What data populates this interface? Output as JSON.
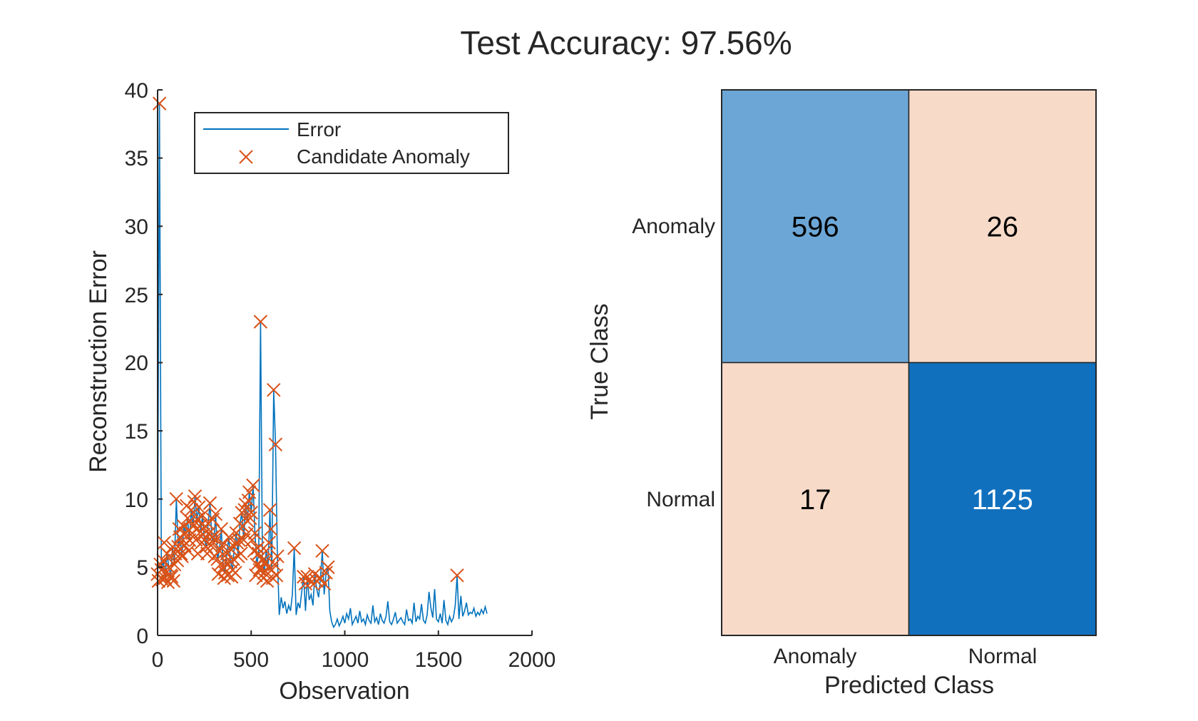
{
  "title": "Test Accuracy: 97.56%",
  "chart_data": [
    {
      "type": "line",
      "xlabel": "Observation",
      "ylabel": "Reconstruction Error",
      "xlim": [
        0,
        2000
      ],
      "ylim": [
        0,
        40
      ],
      "xticks": [
        "0",
        "500",
        "1000",
        "1500",
        "2000"
      ],
      "yticks": [
        "0",
        "5",
        "10",
        "15",
        "20",
        "25",
        "30",
        "35",
        "40"
      ],
      "grid": false,
      "legend": {
        "placement": "top-center",
        "entries": [
          "Error",
          "Candidate Anomaly"
        ]
      },
      "colors": {
        "error": "#0072BD",
        "anomaly": "#D95319"
      },
      "series": [
        {
          "name": "Error",
          "x_start": 0,
          "x_step": 10,
          "y": [
            4.5,
            39,
            4.8,
            5.5,
            4.2,
            6.0,
            5.0,
            4.4,
            6.5,
            5.2,
            10.0,
            6.5,
            7.2,
            5.8,
            8.0,
            7.5,
            8.6,
            7.0,
            9.2,
            8.0,
            10.2,
            8.5,
            9.4,
            7.6,
            8.8,
            7.0,
            6.5,
            8.2,
            9.7,
            7.2,
            6.8,
            8.9,
            5.6,
            6.2,
            7.8,
            5.0,
            4.6,
            6.0,
            7.2,
            5.4,
            4.8,
            6.5,
            7.5,
            5.8,
            8.2,
            9.0,
            7.0,
            9.6,
            8.4,
            10.5,
            9.0,
            11.0,
            7.5,
            5.2,
            6.0,
            23.0,
            5.5,
            4.6,
            6.2,
            5.0,
            9.2,
            4.8,
            18.0,
            14.0,
            5.8,
            1.5,
            2.8,
            2.0,
            2.5,
            1.6,
            2.2,
            1.8,
            3.0,
            6.4,
            1.5,
            2.4,
            2.0,
            3.2,
            4.3,
            1.8,
            4.3,
            2.6,
            3.0,
            2.2,
            4.5,
            3.4,
            2.8,
            4.2,
            6.2,
            3.0,
            4.6,
            5.0,
            1.8,
            1.0,
            0.6,
            0.8,
            1.2,
            0.7,
            1.0,
            1.4,
            0.9,
            1.6,
            1.2,
            2.0,
            0.8,
            1.1,
            1.4,
            0.9,
            1.8,
            1.0,
            1.2,
            0.8,
            1.5,
            1.1,
            0.9,
            2.2,
            1.0,
            1.3,
            0.8,
            1.6,
            1.1,
            0.9,
            1.4,
            2.5,
            1.0,
            0.8,
            1.2,
            1.7,
            0.9,
            1.1,
            1.3,
            1.0,
            0.8,
            1.9,
            1.1,
            1.2,
            0.9,
            2.4,
            1.0,
            1.4,
            1.2,
            2.3,
            1.1,
            0.9,
            1.5,
            3.2,
            2.0,
            1.3,
            3.4,
            1.2,
            1.0,
            1.6,
            0.9,
            2.6,
            1.1,
            0.8,
            1.4,
            1.0,
            1.3,
            2.2,
            4.4,
            1.2,
            2.9,
            1.4,
            1.8,
            2.4,
            1.5,
            1.7,
            1.6,
            2.0,
            1.4,
            1.7,
            1.5,
            1.9,
            1.6,
            2.1,
            1.6
          ]
        },
        {
          "name": "Candidate Anomaly",
          "points": [
            [
              0,
              4.5
            ],
            [
              10,
              39
            ],
            [
              20,
              4.8
            ],
            [
              30,
              5.5
            ],
            [
              40,
              4.2
            ],
            [
              50,
              6.0
            ],
            [
              60,
              5.0
            ],
            [
              70,
              4.4
            ],
            [
              80,
              6.5
            ],
            [
              90,
              5.2
            ],
            [
              100,
              10.0
            ],
            [
              110,
              6.5
            ],
            [
              120,
              7.2
            ],
            [
              130,
              5.8
            ],
            [
              140,
              8.0
            ],
            [
              150,
              7.5
            ],
            [
              160,
              8.6
            ],
            [
              170,
              7.0
            ],
            [
              180,
              9.2
            ],
            [
              190,
              8.0
            ],
            [
              200,
              10.2
            ],
            [
              210,
              8.5
            ],
            [
              220,
              9.4
            ],
            [
              230,
              7.6
            ],
            [
              240,
              8.8
            ],
            [
              250,
              7.0
            ],
            [
              260,
              6.5
            ],
            [
              270,
              8.2
            ],
            [
              280,
              9.7
            ],
            [
              290,
              7.2
            ],
            [
              300,
              6.8
            ],
            [
              310,
              8.9
            ],
            [
              320,
              5.6
            ],
            [
              330,
              6.2
            ],
            [
              340,
              7.8
            ],
            [
              350,
              5.0
            ],
            [
              360,
              4.6
            ],
            [
              370,
              6.0
            ],
            [
              380,
              7.2
            ],
            [
              390,
              5.4
            ],
            [
              400,
              4.8
            ],
            [
              410,
              6.5
            ],
            [
              420,
              7.5
            ],
            [
              430,
              5.8
            ],
            [
              440,
              8.2
            ],
            [
              450,
              9.0
            ],
            [
              460,
              7.0
            ],
            [
              470,
              9.6
            ],
            [
              480,
              8.4
            ],
            [
              490,
              10.5
            ],
            [
              500,
              9.0
            ],
            [
              510,
              11.0
            ],
            [
              520,
              7.5
            ],
            [
              530,
              5.2
            ],
            [
              540,
              6.0
            ],
            [
              550,
              23.0
            ],
            [
              560,
              5.5
            ],
            [
              570,
              4.6
            ],
            [
              580,
              6.2
            ],
            [
              590,
              5.0
            ],
            [
              600,
              9.2
            ],
            [
              610,
              4.8
            ],
            [
              620,
              18.0
            ],
            [
              630,
              14.0
            ],
            [
              640,
              5.8
            ],
            [
              5,
              4.0
            ],
            [
              15,
              5.2
            ],
            [
              25,
              4.1
            ],
            [
              35,
              6.8
            ],
            [
              45,
              4.6
            ],
            [
              55,
              3.9
            ],
            [
              65,
              5.8
            ],
            [
              75,
              4.3
            ],
            [
              85,
              4.0
            ],
            [
              95,
              6.0
            ],
            [
              105,
              5.5
            ],
            [
              115,
              7.8
            ],
            [
              125,
              6.0
            ],
            [
              135,
              7.0
            ],
            [
              145,
              6.6
            ],
            [
              155,
              9.5
            ],
            [
              165,
              6.2
            ],
            [
              175,
              8.4
            ],
            [
              185,
              7.5
            ],
            [
              195,
              9.8
            ],
            [
              205,
              7.0
            ],
            [
              215,
              6.0
            ],
            [
              225,
              8.0
            ],
            [
              235,
              6.8
            ],
            [
              245,
              7.4
            ],
            [
              255,
              8.0
            ],
            [
              265,
              6.0
            ],
            [
              275,
              7.5
            ],
            [
              285,
              6.6
            ],
            [
              295,
              8.5
            ],
            [
              305,
              5.8
            ],
            [
              315,
              7.2
            ],
            [
              325,
              4.5
            ],
            [
              335,
              5.2
            ],
            [
              345,
              6.6
            ],
            [
              355,
              4.2
            ],
            [
              365,
              5.4
            ],
            [
              375,
              4.4
            ],
            [
              385,
              6.4
            ],
            [
              395,
              4.3
            ],
            [
              405,
              5.6
            ],
            [
              415,
              4.6
            ],
            [
              425,
              6.8
            ],
            [
              435,
              7.0
            ],
            [
              445,
              6.0
            ],
            [
              455,
              8.0
            ],
            [
              465,
              9.2
            ],
            [
              475,
              7.4
            ],
            [
              485,
              9.9
            ],
            [
              495,
              8.6
            ],
            [
              505,
              7.0
            ],
            [
              515,
              6.2
            ],
            [
              525,
              4.4
            ],
            [
              535,
              6.4
            ],
            [
              545,
              4.8
            ],
            [
              555,
              5.0
            ],
            [
              565,
              4.2
            ],
            [
              575,
              5.4
            ],
            [
              585,
              4.0
            ],
            [
              595,
              6.8
            ],
            [
              605,
              7.8
            ],
            [
              615,
              4.2
            ],
            [
              625,
              5.2
            ],
            [
              635,
              4.4
            ],
            [
              730,
              6.4
            ],
            [
              780,
              4.3
            ],
            [
              790,
              3.8
            ],
            [
              800,
              4.3
            ],
            [
              820,
              3.9
            ],
            [
              840,
              4.5
            ],
            [
              850,
              4.0
            ],
            [
              870,
              4.2
            ],
            [
              880,
              6.2
            ],
            [
              890,
              3.8
            ],
            [
              900,
              4.6
            ],
            [
              910,
              5.0
            ],
            [
              1600,
              4.4
            ]
          ]
        }
      ]
    },
    {
      "type": "heatmap",
      "xlabel": "Predicted Class",
      "ylabel": "True Class",
      "categories": [
        "Anomaly",
        "Normal"
      ],
      "values": [
        [
          596,
          26
        ],
        [
          17,
          1125
        ]
      ],
      "cell_colors": [
        [
          "#6CA6D6",
          "#F7DAC8"
        ],
        [
          "#F7DAC8",
          "#1170BE"
        ]
      ],
      "text_colors": [
        [
          "#000000",
          "#000000"
        ],
        [
          "#000000",
          "#FFFFFF"
        ]
      ]
    }
  ]
}
